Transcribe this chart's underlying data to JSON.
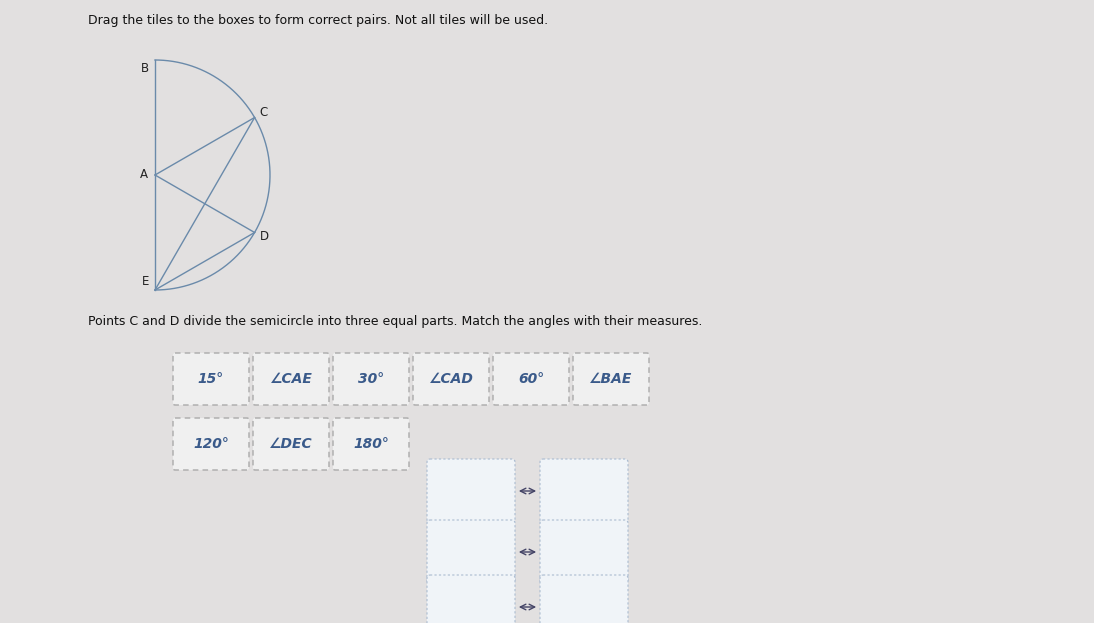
{
  "background_color": "#e2e0e0",
  "title_text": "Drag the tiles to the boxes to form correct pairs. Not all tiles will be used.",
  "subtitle_text": "Points C and D divide the semicircle into three equal parts. Match the angles with their measures.",
  "title_fontsize": 9.0,
  "subtitle_fontsize": 9.0,
  "tile_items_row1": [
    "15°",
    "∠CAE",
    "30°",
    "∠CAD",
    "60°",
    "∠BAE"
  ],
  "tile_items_row2": [
    "120°",
    "∠DEC",
    "180°"
  ],
  "tile_color": "#f0f0f0",
  "tile_border": "#aaaaaa",
  "tile_text_color": "#3a5a8a",
  "tile_fontsize": 10,
  "box_border": "#aabbd0",
  "box_bg": "#f0f4f8",
  "semicircle_color": "#6a8aaa",
  "label_color": "#222222",
  "label_fontsize": 8.5
}
